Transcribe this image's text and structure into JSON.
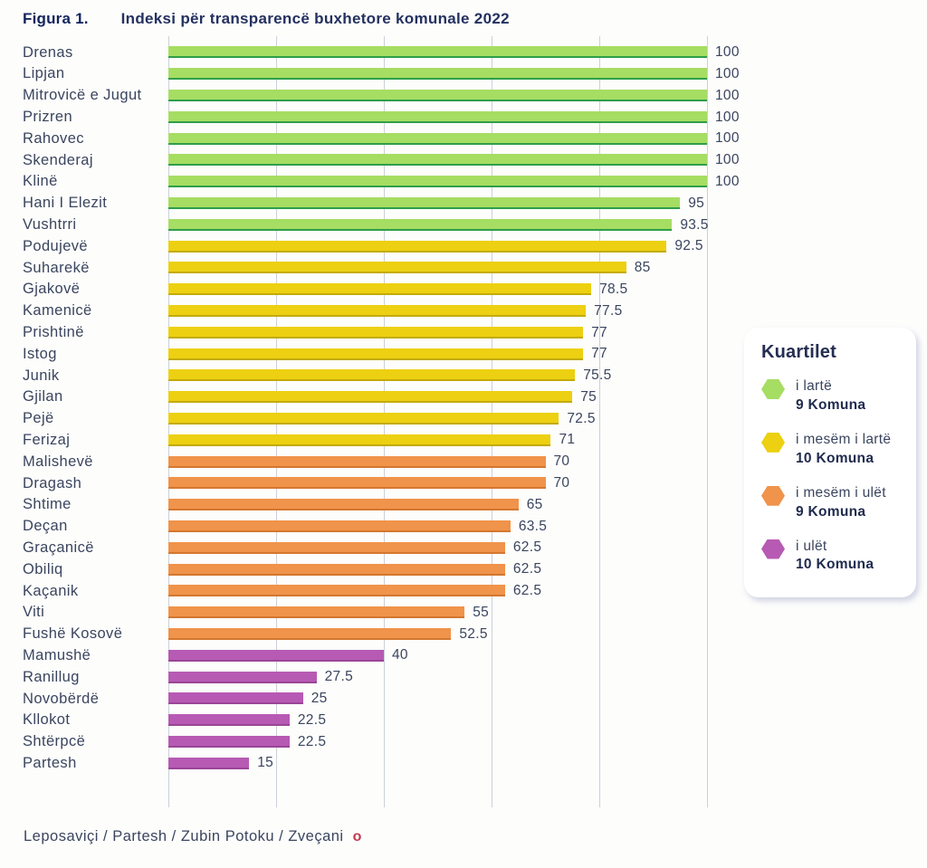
{
  "header": {
    "figure_label": "Figura 1.",
    "title": "Indeksi për transparencë buxhetore komunale 2022"
  },
  "chart_data": {
    "type": "bar",
    "orientation": "horizontal",
    "title": "Indeksi për transparencë buxhetore komunale 2022",
    "xlim": [
      0,
      100
    ],
    "gridline_values": [
      0,
      20,
      40,
      60,
      80,
      100
    ],
    "grid": "vertical-only, no tick labels",
    "legend_position": "right",
    "bars": [
      {
        "name": "Drenas",
        "value": 100,
        "quartile": "i lartë"
      },
      {
        "name": "Lipjan",
        "value": 100,
        "quartile": "i lartë"
      },
      {
        "name": "Mitrovicë e Jugut",
        "value": 100,
        "quartile": "i lartë"
      },
      {
        "name": "Prizren",
        "value": 100,
        "quartile": "i lartë"
      },
      {
        "name": "Rahovec",
        "value": 100,
        "quartile": "i lartë"
      },
      {
        "name": "Skenderaj",
        "value": 100,
        "quartile": "i lartë"
      },
      {
        "name": "Klinë",
        "value": 100,
        "quartile": "i lartë"
      },
      {
        "name": "Hani I Elezit",
        "value": 95,
        "quartile": "i lartë"
      },
      {
        "name": "Vushtrri",
        "value": 93.5,
        "quartile": "i lartë"
      },
      {
        "name": "Podujevë",
        "value": 92.5,
        "quartile": "i mesëm i lartë"
      },
      {
        "name": "Suharekë",
        "value": 85,
        "quartile": "i mesëm i lartë"
      },
      {
        "name": "Gjakovë",
        "value": 78.5,
        "quartile": "i mesëm i lartë"
      },
      {
        "name": "Kamenicë",
        "value": 77.5,
        "quartile": "i mesëm i lartë"
      },
      {
        "name": "Prishtinë",
        "value": 77,
        "quartile": "i mesëm i lartë"
      },
      {
        "name": "Istog",
        "value": 77,
        "quartile": "i mesëm i lartë"
      },
      {
        "name": "Junik",
        "value": 75.5,
        "quartile": "i mesëm i lartë"
      },
      {
        "name": "Gjilan",
        "value": 75,
        "quartile": "i mesëm i lartë"
      },
      {
        "name": "Pejë",
        "value": 72.5,
        "quartile": "i mesëm i lartë"
      },
      {
        "name": "Ferizaj",
        "value": 71,
        "quartile": "i mesëm i lartë"
      },
      {
        "name": "Malishevë",
        "value": 70,
        "quartile": "i mesëm i ulët"
      },
      {
        "name": "Dragash",
        "value": 70,
        "quartile": "i mesëm i ulët"
      },
      {
        "name": "Shtime",
        "value": 65,
        "quartile": "i mesëm i ulët"
      },
      {
        "name": "Deçan",
        "value": 63.5,
        "quartile": "i mesëm i ulët"
      },
      {
        "name": "Graçanicë",
        "value": 62.5,
        "quartile": "i mesëm i ulët"
      },
      {
        "name": "Obiliq",
        "value": 62.5,
        "quartile": "i mesëm i ulët"
      },
      {
        "name": "Kaçanik",
        "value": 62.5,
        "quartile": "i mesëm i ulët"
      },
      {
        "name": "Viti",
        "value": 55,
        "quartile": "i mesëm i ulët"
      },
      {
        "name": "Fushë Kosovë",
        "value": 52.5,
        "quartile": "i mesëm i ulët"
      },
      {
        "name": "Mamushë",
        "value": 40,
        "quartile": "i ulët"
      },
      {
        "name": "Ranillug",
        "value": 27.5,
        "quartile": "i ulët"
      },
      {
        "name": "Novobërdë",
        "value": 25,
        "quartile": "i ulët"
      },
      {
        "name": "Kllokot",
        "value": 22.5,
        "quartile": "i ulët"
      },
      {
        "name": "Shtërpcë",
        "value": 22.5,
        "quartile": "i ulët"
      },
      {
        "name": "Partesh",
        "value": 15,
        "quartile": "i ulët"
      }
    ]
  },
  "legend": {
    "title": "Kuartilet",
    "items": [
      {
        "label": "i lartë",
        "count": "9 Komuna",
        "color": "#a6dd63",
        "edge_color": "#2f9e4a"
      },
      {
        "label": "i mesëm i lartë",
        "count": "10 Komuna",
        "color": "#ecd011",
        "edge_color": "#c3ab08"
      },
      {
        "label": "i mesëm i ulët",
        "count": "9 Komuna",
        "color": "#f0934b",
        "edge_color": "#d4772f"
      },
      {
        "label": "i ulët",
        "count": "10 Komuna",
        "color": "#b75ab4",
        "edge_color": "#9a4697"
      }
    ]
  },
  "footnote": {
    "text": "Leposaviçi / Partesh / Zubin Potoku / Zveçani",
    "marker": "o",
    "marker_color": "#c23a4c"
  }
}
